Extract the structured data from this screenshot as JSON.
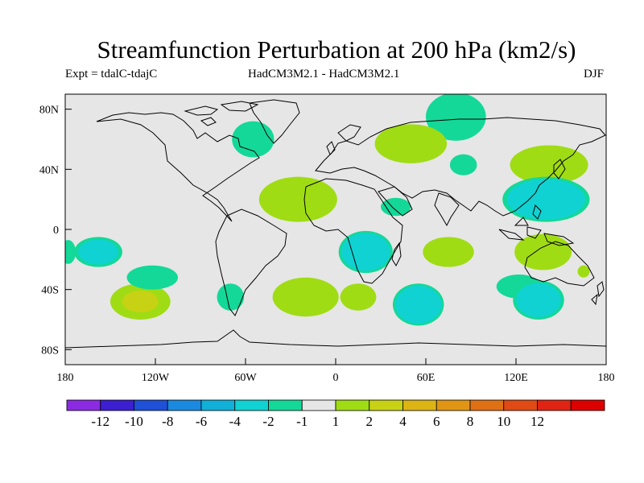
{
  "title": "Streamfunction Perturbation at 200 hPa (km2/s)",
  "subtitle_left": "Expt = tdalC-tdajC",
  "subtitle_center": "HadCM3M2.1 - HadCM3M2.1",
  "subtitle_right": "DJF",
  "map": {
    "lon_ticks": [
      "180",
      "120W",
      "60W",
      "0",
      "60E",
      "120E",
      "180"
    ],
    "lat_ticks": [
      "80N",
      "40N",
      "0",
      "40S",
      "80S"
    ],
    "background_color": "#e6e6e6",
    "coastline_color": "#000000"
  },
  "colorbar": {
    "colors": [
      "#8a2be2",
      "#3c1fd0",
      "#1e50d8",
      "#1a8ae0",
      "#10b0d8",
      "#10d2d2",
      "#14d898",
      "#e6e6e6",
      "#a0dc14",
      "#c8d214",
      "#dcb414",
      "#e09614",
      "#e07014",
      "#e04a14",
      "#e02414",
      "#dc0000"
    ],
    "labels": [
      "-12",
      "-10",
      "-8",
      "-6",
      "-4",
      "-2",
      "-1",
      "1",
      "2",
      "4",
      "6",
      "8",
      "10",
      "12"
    ]
  },
  "chart_data": {
    "type": "heatmap",
    "title": "Streamfunction Perturbation at 200 hPa (km2/s)",
    "variable": "200 hPa streamfunction perturbation",
    "units": "km2/s",
    "season": "DJF",
    "xlim": [
      -180,
      180
    ],
    "ylim": [
      -90,
      90
    ],
    "contour_levels": [
      -12,
      -10,
      -8,
      -6,
      -4,
      -2,
      -1,
      1,
      2,
      4,
      6,
      8,
      10,
      12
    ],
    "anomaly_centers": [
      {
        "lon": 142,
        "lat": 43,
        "peak": 3
      },
      {
        "lon": 140,
        "lat": 20,
        "peak": -4
      },
      {
        "lon": 138,
        "lat": -15,
        "peak": 3
      },
      {
        "lon": 122,
        "lat": -38,
        "peak": -1.5
      },
      {
        "lon": 80,
        "lat": 75,
        "peak": -1.5
      },
      {
        "lon": -55,
        "lat": 60,
        "peak": -1.5
      },
      {
        "lon": -25,
        "lat": 20,
        "peak": 3
      },
      {
        "lon": 50,
        "lat": 57,
        "peak": 3
      },
      {
        "lon": 20,
        "lat": -15,
        "peak": -4
      },
      {
        "lon": 75,
        "lat": -15,
        "peak": 2
      },
      {
        "lon": -20,
        "lat": -45,
        "peak": 3
      },
      {
        "lon": 55,
        "lat": -50,
        "peak": -4
      },
      {
        "lon": 15,
        "lat": -45,
        "peak": 3
      },
      {
        "lon": 135,
        "lat": -47,
        "peak": -3
      },
      {
        "lon": -158,
        "lat": -15,
        "peak": -2
      },
      {
        "lon": 40,
        "lat": 15,
        "peak": -1.5
      },
      {
        "lon": 85,
        "lat": 43,
        "peak": -1.5
      },
      {
        "lon": -130,
        "lat": -48,
        "peak": 4
      },
      {
        "lon": -122,
        "lat": -32,
        "peak": -1.5
      },
      {
        "lon": 165,
        "lat": -28,
        "peak": 1.5
      },
      {
        "lon": -70,
        "lat": -45,
        "peak": -1.5
      },
      {
        "lon": -178,
        "lat": -15,
        "peak": -1.5
      }
    ]
  }
}
